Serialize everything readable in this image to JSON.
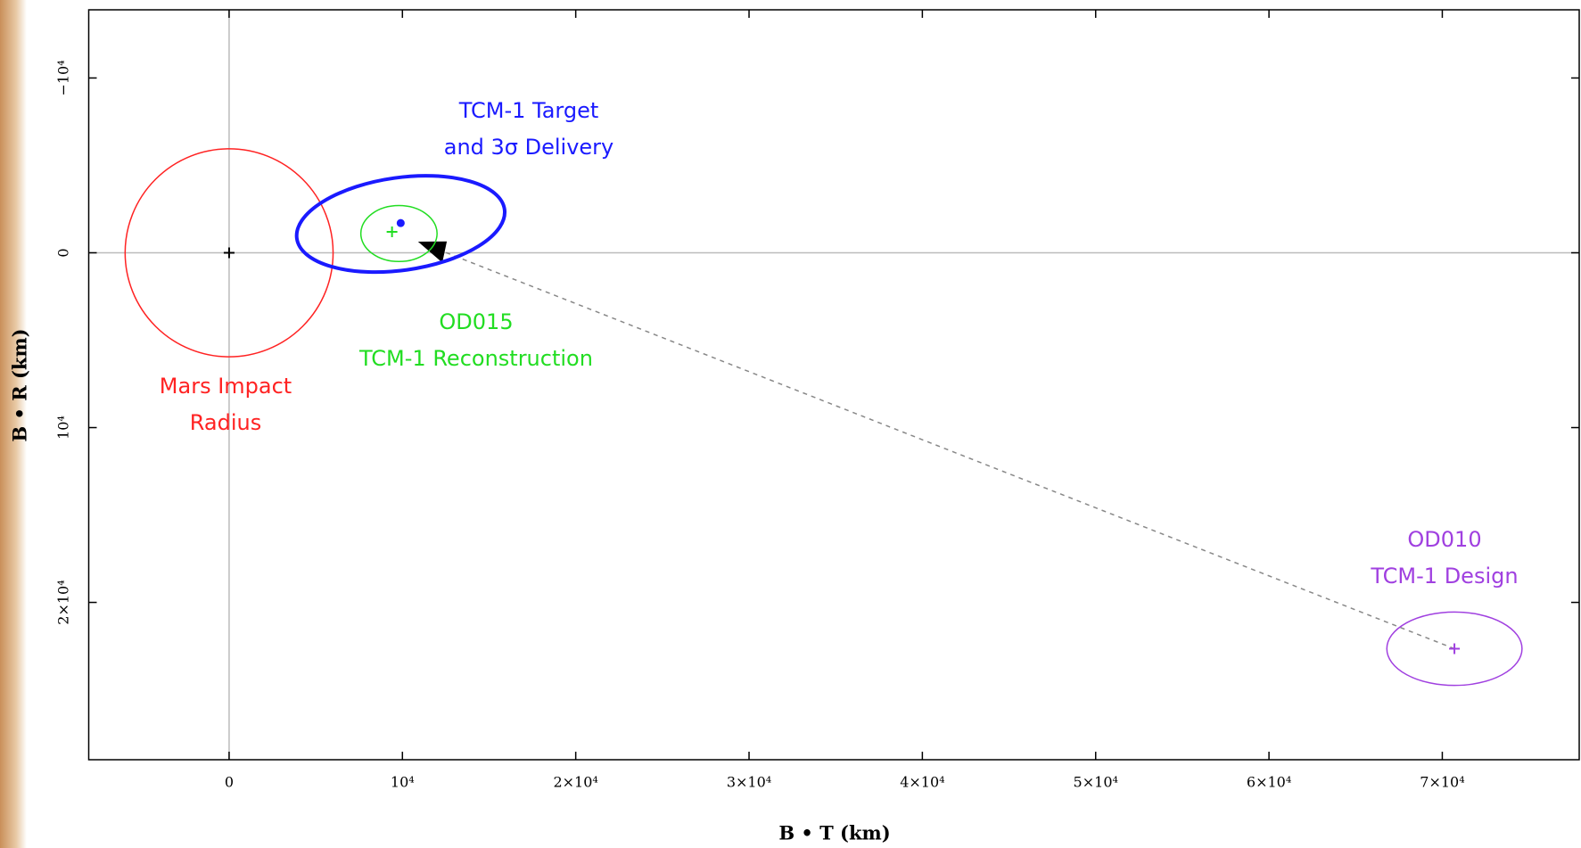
{
  "chart_data": {
    "type": "scatter",
    "x_label": "B • T (km)",
    "y_label": "B • R (km)",
    "xlim": [
      -8100,
      77900
    ],
    "ylim": [
      -13900,
      29000
    ],
    "y_inverted": true,
    "xticks": [
      0,
      {
        "value": 10000,
        "label": "10⁴"
      },
      {
        "value": 20000,
        "label": "2×10⁴"
      },
      {
        "value": 30000,
        "label": "3×10⁴"
      },
      {
        "value": 40000,
        "label": "4×10⁴"
      },
      {
        "value": 50000,
        "label": "5×10⁴"
      },
      {
        "value": 60000,
        "label": "6×10⁴"
      },
      {
        "value": 70000,
        "label": "7×10⁴"
      }
    ],
    "yticks": [
      {
        "value": -10000,
        "label": "−10⁴"
      },
      0,
      {
        "value": 10000,
        "label": "10⁴"
      },
      {
        "value": 20000,
        "label": "2×10⁴"
      }
    ],
    "zero_lines": true,
    "ellipses": [
      {
        "label": [
          "Mars Impact",
          "Radius"
        ],
        "color": "#ff2222",
        "line_width": 1.5,
        "cx": 0,
        "cy": 0,
        "rx": 6000,
        "ry": 5950,
        "angle": 0
      },
      {
        "label": [
          "TCM-1 Target",
          "and 3σ Delivery"
        ],
        "color": "#1a1aff",
        "line_width": 4,
        "cx": 9900,
        "cy": -1650,
        "rx": 6050,
        "ry": 2650,
        "angle": -8
      },
      {
        "label": [
          "OD015",
          "TCM-1 Reconstruction"
        ],
        "color": "#22dd22",
        "line_width": 1.5,
        "cx": 9800,
        "cy": -1100,
        "rx": 2200,
        "ry": 1600,
        "angle": 0
      },
      {
        "label": [
          "OD010",
          "TCM-1 Design"
        ],
        "color": "#a040e0",
        "line_width": 1.5,
        "cx": 70700,
        "cy": 22650,
        "rx": 3900,
        "ry": 2100,
        "angle": 0
      }
    ],
    "points": [
      {
        "color": "#000000",
        "marker": "plus",
        "x": 0,
        "y": 0
      },
      {
        "color": "#1a1aff",
        "marker": "dot",
        "x": 9900,
        "y": -1700
      },
      {
        "color": "#22dd22",
        "marker": "plus",
        "x": 9400,
        "y": -1200
      },
      {
        "color": "#a040e0",
        "marker": "plus",
        "x": 70700,
        "y": 22650
      }
    ],
    "trajectory": {
      "color": "#888888",
      "x": [
        70700,
        10900
      ],
      "y": [
        22650,
        -640
      ]
    }
  }
}
